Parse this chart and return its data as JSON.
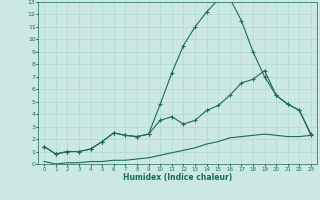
{
  "xlabel": "Humidex (Indice chaleur)",
  "background_color": "#cce8e4",
  "grid_color": "#b0d8d0",
  "line_color": "#1a6b5a",
  "xlim": [
    -0.5,
    23.5
  ],
  "ylim": [
    0,
    13
  ],
  "xticks": [
    0,
    1,
    2,
    3,
    4,
    5,
    6,
    7,
    8,
    9,
    10,
    11,
    12,
    13,
    14,
    15,
    16,
    17,
    18,
    19,
    20,
    21,
    22,
    23
  ],
  "yticks": [
    0,
    1,
    2,
    3,
    4,
    5,
    6,
    7,
    8,
    9,
    10,
    11,
    12,
    13
  ],
  "line1_x": [
    0,
    1,
    2,
    3,
    4,
    5,
    6,
    7,
    8,
    9,
    10,
    11,
    12,
    13,
    14,
    15,
    16,
    17,
    18,
    19,
    20,
    21,
    22,
    23
  ],
  "line1_y": [
    0.2,
    0.0,
    0.1,
    0.1,
    0.2,
    0.2,
    0.3,
    0.3,
    0.4,
    0.5,
    0.7,
    0.9,
    1.1,
    1.3,
    1.6,
    1.8,
    2.1,
    2.2,
    2.3,
    2.4,
    2.3,
    2.2,
    2.2,
    2.3
  ],
  "line2_x": [
    0,
    1,
    2,
    3,
    4,
    5,
    6,
    7,
    8,
    9,
    10,
    11,
    12,
    13,
    14,
    15,
    16,
    17,
    18,
    19,
    20,
    21,
    22,
    23
  ],
  "line2_y": [
    1.4,
    0.8,
    1.0,
    1.0,
    1.2,
    1.8,
    2.5,
    2.3,
    2.2,
    2.4,
    3.5,
    3.8,
    3.2,
    3.5,
    4.3,
    4.7,
    5.5,
    6.5,
    6.8,
    7.5,
    5.5,
    4.8,
    4.3,
    2.4
  ],
  "line3_x": [
    0,
    1,
    2,
    3,
    4,
    5,
    6,
    7,
    8,
    9,
    10,
    11,
    12,
    13,
    14,
    15,
    16,
    17,
    18,
    19,
    20,
    21,
    22,
    23
  ],
  "line3_y": [
    1.4,
    0.8,
    1.0,
    1.0,
    1.2,
    1.8,
    2.5,
    2.3,
    2.2,
    2.4,
    4.8,
    7.3,
    9.5,
    11.0,
    12.2,
    13.2,
    13.3,
    11.5,
    9.0,
    7.0,
    5.5,
    4.8,
    4.3,
    2.3
  ]
}
